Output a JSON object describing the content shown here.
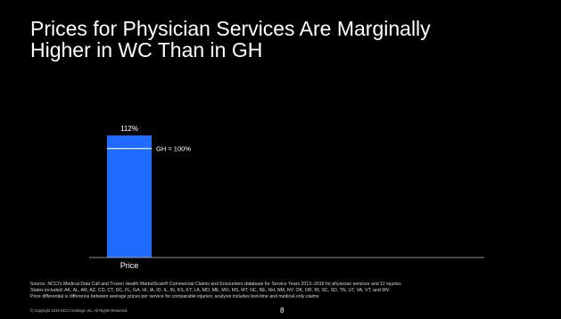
{
  "slide": {
    "title_line1": "Prices for Physician Services Are Marginally",
    "title_line2": "Higher in WC Than in GH",
    "source_line1": "Source:  NCCI's Medical Data Call and Truven Health MarketScan® Commercial Claims and Encounters database for Service Years 2013–2016 for physician services and 12 injuries",
    "source_line2": "States included: AK, AL, AR, AZ, CO, CT, DC, FL, GA, HI, IA, ID, IL, IN, KS, KY, LA, MD, ME, MO, MS, MT, NC, NE, NH, NM, NV, OK, OR, RI, SC, SD, TN, UT, VA, VT, and WV",
    "source_line3": "Price differential is difference between average prices per service for comparable injuries; analysis includes lost-time and medical-only claims",
    "copyright": "© Copyright 2019 NCCI Holdings, Inc. All Rights Reserved.",
    "page_number": "8"
  },
  "colors": {
    "background": "#000000",
    "bar": "#1f6bff",
    "text": "#ffffff",
    "axis": "#bfbfbf"
  },
  "chart_data": {
    "type": "bar",
    "categories": [
      "Price"
    ],
    "values": [
      112
    ],
    "data_labels": [
      "112%"
    ],
    "reference_line": {
      "value": 100,
      "label": "GH = 100%"
    },
    "ylim": [
      0,
      112
    ],
    "grid": false,
    "title": "",
    "xlabel": "",
    "ylabel": ""
  }
}
